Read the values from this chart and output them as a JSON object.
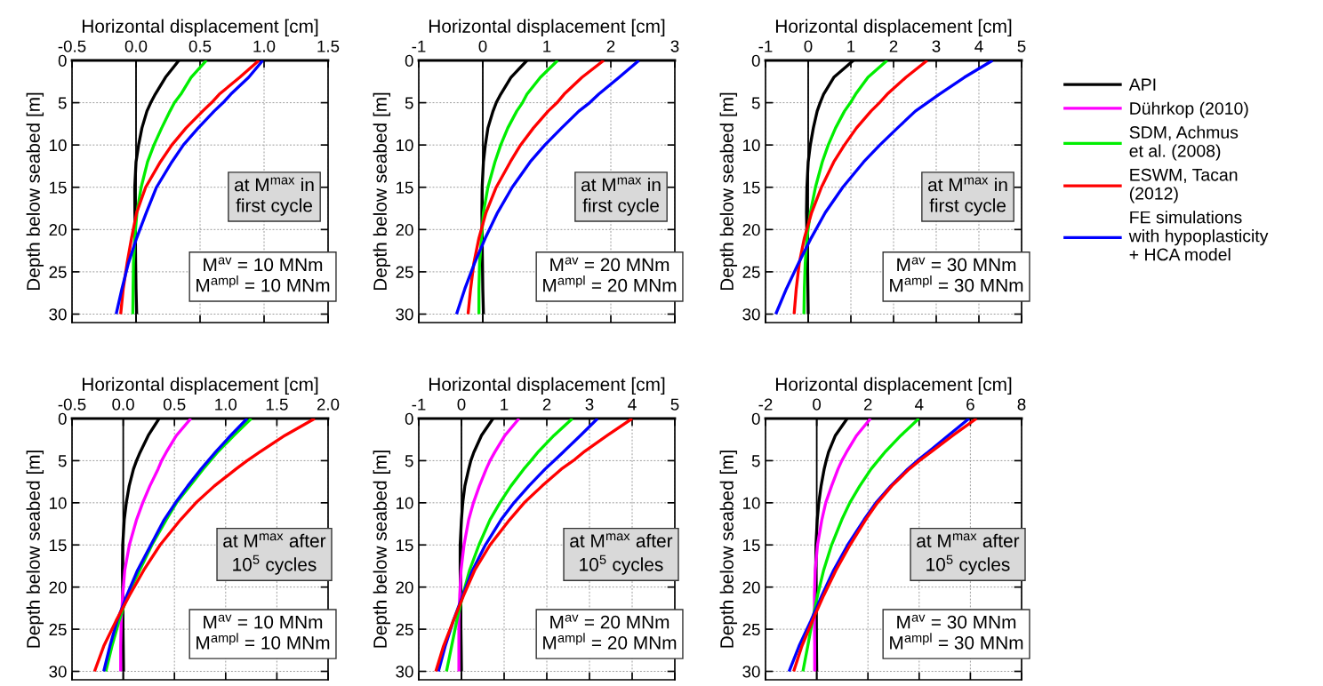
{
  "chart_data": [
    {
      "type": "line",
      "xlabel": "Horizontal displacement [cm]",
      "ylabel": "Depth below seabed [m]",
      "xlim": [
        -0.5,
        1.5
      ],
      "xticks": [
        -0.5,
        {
          "value": 0,
          "label": "0.0"
        },
        0.5,
        {
          "value": 1,
          "label": "1.0"
        },
        1.5
      ],
      "ylim": [
        31,
        0
      ],
      "yticks": [
        0,
        5,
        10,
        15,
        20,
        25,
        30
      ],
      "grid": true,
      "legend": "right",
      "ref_lines": [
        {
          "axis": "x",
          "value": 0,
          "color": "#000000"
        }
      ],
      "annotations": [
        "at M$^{max}$ in\nfirst cycle",
        "M$^{av}$ = 10 MNm\nM$^{ampl}$ = 10 MNm"
      ],
      "series": [
        {
          "name": "API",
          "color": "#000000",
          "x": [
            0.335,
            0.23,
            0.15,
            0.115,
            0.085,
            0.046,
            0.02,
            0.0,
            -0.01,
            -0.009,
            -0.005,
            -0.003,
            0.0,
            0.005
          ],
          "values": [
            0,
            2,
            4,
            5,
            6,
            8,
            10,
            12,
            15,
            18,
            21,
            24,
            27,
            30
          ]
        },
        {
          "name": "SDM, Achmus\net al. (2008)",
          "color": "#00ee00",
          "x": [
            0.55,
            0.43,
            0.35,
            0.3,
            0.265,
            0.2,
            0.14,
            0.09,
            0.04,
            0.007,
            -0.01,
            -0.02,
            -0.023,
            -0.025
          ],
          "values": [
            0,
            2,
            4,
            5,
            6,
            8,
            10,
            12,
            15,
            18,
            21,
            24,
            27,
            30
          ]
        },
        {
          "name": "ESWM, Tacan\n(2012)",
          "color": "#ff0000",
          "x": [
            0.96,
            0.81,
            0.65,
            0.59,
            0.52,
            0.39,
            0.28,
            0.19,
            0.075,
            0.005,
            -0.035,
            -0.07,
            -0.1,
            -0.12
          ],
          "values": [
            0,
            2,
            4,
            5,
            6,
            8,
            10,
            12,
            15,
            18,
            21,
            24,
            27,
            30
          ]
        },
        {
          "name": "FE simulations\nwith hypoplasticity\n+ HCA model",
          "color": "#0000ff",
          "x": [
            0.99,
            0.88,
            0.74,
            0.68,
            0.61,
            0.485,
            0.37,
            0.28,
            0.16,
            0.08,
            0.005,
            -0.06,
            -0.11,
            -0.155
          ],
          "values": [
            0,
            2,
            4,
            5,
            6,
            8,
            10,
            12,
            15,
            18,
            21,
            24,
            27,
            30
          ]
        }
      ]
    },
    {
      "type": "line",
      "xlabel": "Horizontal displacement [cm]",
      "ylabel": "Depth below seabed [m]",
      "xlim": [
        -1,
        3
      ],
      "xticks": [
        -1,
        0,
        1,
        2,
        3
      ],
      "ylim": [
        31,
        0
      ],
      "yticks": [
        0,
        5,
        10,
        15,
        20,
        25,
        30
      ],
      "grid": true,
      "ref_lines": [
        {
          "axis": "x",
          "value": 0,
          "color": "#000000"
        }
      ],
      "annotations": [
        "at M$^{max}$ in\nfirst cycle",
        "M$^{av}$ = 20 MNm\nM$^{ampl}$ = 20 MNm"
      ],
      "series": [
        {
          "name": "API",
          "color": "#000000",
          "x": [
            0.69,
            0.44,
            0.28,
            0.21,
            0.16,
            0.08,
            0.04,
            0.01,
            -0.01,
            -0.014,
            -0.01,
            -0.005,
            0.0,
            0.01
          ],
          "values": [
            0,
            2,
            4,
            5,
            6,
            8,
            10,
            12,
            15,
            18,
            21,
            24,
            27,
            30
          ]
        },
        {
          "name": "SDM, Achmus\net al. (2008)",
          "color": "#00ee00",
          "x": [
            1.17,
            0.9,
            0.69,
            0.62,
            0.53,
            0.39,
            0.28,
            0.19,
            0.08,
            0.01,
            -0.02,
            -0.05,
            -0.06,
            -0.06
          ],
          "values": [
            0,
            2,
            4,
            5,
            6,
            8,
            10,
            12,
            15,
            18,
            21,
            24,
            27,
            30
          ]
        },
        {
          "name": "ESWM, Tacan\n(2012)",
          "color": "#ff0000",
          "x": [
            1.89,
            1.55,
            1.27,
            1.16,
            1.02,
            0.79,
            0.59,
            0.43,
            0.21,
            0.05,
            -0.06,
            -0.14,
            -0.19,
            -0.23
          ],
          "values": [
            0,
            2,
            4,
            5,
            6,
            8,
            10,
            12,
            15,
            18,
            21,
            24,
            27,
            30
          ]
        },
        {
          "name": "FE simulations\nwith hypoplasticity\n+ HCA model",
          "color": "#0000ff",
          "x": [
            2.44,
            2.13,
            1.81,
            1.67,
            1.5,
            1.23,
            0.97,
            0.74,
            0.46,
            0.23,
            0.04,
            -0.13,
            -0.28,
            -0.41
          ],
          "values": [
            0,
            2,
            4,
            5,
            6,
            8,
            10,
            12,
            15,
            18,
            21,
            24,
            27,
            30
          ]
        }
      ]
    },
    {
      "type": "line",
      "xlabel": "Horizontal displacement [cm]",
      "ylabel": "Depth below seabed [m]",
      "xlim": [
        -1,
        5
      ],
      "xticks": [
        -1,
        0,
        1,
        2,
        3,
        4,
        5
      ],
      "ylim": [
        31,
        0
      ],
      "yticks": [
        0,
        5,
        10,
        15,
        20,
        25,
        30
      ],
      "grid": true,
      "ref_lines": [
        {
          "axis": "x",
          "value": 0,
          "color": "#000000"
        }
      ],
      "annotations": [
        "at M$^{max}$ in\nfirst cycle",
        "M$^{av}$ = 30 MNm\nM$^{ampl}$ = 30 MNm"
      ],
      "series": [
        {
          "name": "API",
          "color": "#000000",
          "x": [
            1.06,
            0.6,
            0.36,
            0.28,
            0.21,
            0.12,
            0.05,
            0.0,
            -0.03,
            -0.04,
            -0.03,
            -0.015,
            -0.007,
            0.0
          ],
          "values": [
            0,
            2,
            4,
            5,
            6,
            8,
            10,
            12,
            15,
            18,
            21,
            24,
            27,
            30
          ]
        },
        {
          "name": "SDM, Achmus\net al. (2008)",
          "color": "#00ee00",
          "x": [
            1.85,
            1.4,
            1.11,
            0.99,
            0.85,
            0.64,
            0.47,
            0.33,
            0.17,
            0.05,
            -0.03,
            -0.07,
            -0.09,
            -0.1
          ],
          "values": [
            0,
            2,
            4,
            5,
            6,
            8,
            10,
            12,
            15,
            18,
            21,
            24,
            27,
            30
          ]
        },
        {
          "name": "ESWM, Tacan\n(2012)",
          "color": "#ff0000",
          "x": [
            2.79,
            2.29,
            1.85,
            1.67,
            1.47,
            1.13,
            0.85,
            0.6,
            0.31,
            0.08,
            -0.09,
            -0.21,
            -0.28,
            -0.33
          ],
          "values": [
            0,
            2,
            4,
            5,
            6,
            8,
            10,
            12,
            15,
            18,
            21,
            24,
            27,
            30
          ]
        },
        {
          "name": "FE simulations\nwith hypoplasticity\n+ HCA model",
          "color": "#0000ff",
          "x": [
            4.32,
            3.66,
            3.07,
            2.79,
            2.51,
            2.09,
            1.68,
            1.3,
            0.81,
            0.4,
            0.07,
            -0.23,
            -0.51,
            -0.76
          ],
          "values": [
            0,
            2,
            4,
            5,
            6,
            8,
            10,
            12,
            15,
            18,
            21,
            24,
            27,
            30
          ]
        }
      ]
    },
    {
      "type": "line",
      "xlabel": "Horizontal displacement [cm]",
      "ylabel": "Depth below seabed [m]",
      "xlim": [
        -0.5,
        2.0
      ],
      "xticks": [
        -0.5,
        {
          "value": 0,
          "label": "0.0"
        },
        0.5,
        {
          "value": 1,
          "label": "1.0"
        },
        1.5,
        {
          "value": 2,
          "label": "2.0"
        }
      ],
      "ylim": [
        31,
        0
      ],
      "yticks": [
        0,
        5,
        10,
        15,
        20,
        25,
        30
      ],
      "grid": true,
      "ref_lines": [
        {
          "axis": "x",
          "value": 0,
          "color": "#000000"
        }
      ],
      "annotations": [
        "at M$^{max}$ after\n10$^{5}$ cycles",
        "M$^{av}$ = 10 MNm\nM$^{ampl}$ = 10 MNm"
      ],
      "series": [
        {
          "name": "API",
          "color": "#000000",
          "x": [
            0.35,
            0.245,
            0.165,
            0.13,
            0.1,
            0.058,
            0.03,
            0.01,
            -0.005,
            -0.008,
            -0.005,
            -0.003,
            0.0,
            0.003
          ],
          "values": [
            0,
            2,
            4,
            5,
            6,
            8,
            10,
            12,
            15,
            18,
            21,
            24,
            27,
            30
          ]
        },
        {
          "name": "Dührkop (2010)",
          "color": "#ff00ff",
          "x": [
            0.66,
            0.52,
            0.42,
            0.375,
            0.34,
            0.26,
            0.19,
            0.13,
            0.06,
            0.015,
            -0.005,
            -0.02,
            -0.025,
            -0.025
          ],
          "values": [
            0,
            2,
            4,
            5,
            6,
            8,
            10,
            12,
            15,
            18,
            21,
            24,
            27,
            30
          ]
        },
        {
          "name": "SDM, Achmus\net al. (2008)",
          "color": "#00ee00",
          "x": [
            1.25,
            1.08,
            0.92,
            0.85,
            0.78,
            0.65,
            0.52,
            0.42,
            0.28,
            0.16,
            0.04,
            -0.04,
            -0.11,
            -0.17
          ],
          "values": [
            0,
            2,
            4,
            5,
            6,
            8,
            10,
            12,
            15,
            18,
            21,
            24,
            27,
            30
          ]
        },
        {
          "name": "FE simulations\nwith hypoplasticity\n+ HCA model",
          "color": "#0000ff",
          "x": [
            1.21,
            1.05,
            0.9,
            0.83,
            0.76,
            0.63,
            0.51,
            0.4,
            0.27,
            0.14,
            0.035,
            -0.06,
            -0.13,
            -0.19
          ],
          "values": [
            0,
            2,
            4,
            5,
            6,
            8,
            10,
            12,
            15,
            18,
            21,
            24,
            27,
            30
          ]
        },
        {
          "name": "ESWM, Tacan\n(2012)",
          "color": "#ff0000",
          "x": [
            1.87,
            1.58,
            1.33,
            1.21,
            1.1,
            0.89,
            0.71,
            0.56,
            0.36,
            0.2,
            0.06,
            -0.07,
            -0.19,
            -0.28
          ],
          "values": [
            0,
            2,
            4,
            5,
            6,
            8,
            10,
            12,
            15,
            18,
            21,
            24,
            27,
            30
          ]
        }
      ]
    },
    {
      "type": "line",
      "xlabel": "Horizontal displacement [cm]",
      "ylabel": "Depth below seabed [m]",
      "xlim": [
        -1,
        5
      ],
      "xticks": [
        -1,
        0,
        1,
        2,
        3,
        4,
        5
      ],
      "ylim": [
        31,
        0
      ],
      "yticks": [
        0,
        5,
        10,
        15,
        20,
        25,
        30
      ],
      "grid": true,
      "ref_lines": [
        {
          "axis": "x",
          "value": 0,
          "color": "#000000"
        }
      ],
      "annotations": [
        "at M$^{max}$ after\n10$^{5}$ cycles",
        "M$^{av}$ = 20 MNm\nM$^{ampl}$ = 20 MNm"
      ],
      "series": [
        {
          "name": "API",
          "color": "#000000",
          "x": [
            0.74,
            0.47,
            0.29,
            0.22,
            0.17,
            0.08,
            0.03,
            0.0,
            -0.03,
            -0.03,
            -0.02,
            -0.015,
            -0.007,
            0.0
          ],
          "values": [
            0,
            2,
            4,
            5,
            6,
            8,
            10,
            12,
            15,
            18,
            21,
            24,
            27,
            30
          ]
        },
        {
          "name": "Dührkop (2010)",
          "color": "#ff00ff",
          "x": [
            1.35,
            1.02,
            0.78,
            0.67,
            0.58,
            0.42,
            0.28,
            0.17,
            0.06,
            -0.01,
            -0.04,
            -0.06,
            -0.06,
            -0.06
          ],
          "values": [
            0,
            2,
            4,
            5,
            6,
            8,
            10,
            12,
            15,
            18,
            21,
            24,
            27,
            30
          ]
        },
        {
          "name": "SDM, Achmus\net al. (2008)",
          "color": "#00ee00",
          "x": [
            2.6,
            2.17,
            1.79,
            1.63,
            1.46,
            1.16,
            0.9,
            0.67,
            0.41,
            0.19,
            0.03,
            -0.11,
            -0.23,
            -0.35
          ],
          "values": [
            0,
            2,
            4,
            5,
            6,
            8,
            10,
            12,
            15,
            18,
            21,
            24,
            27,
            30
          ]
        },
        {
          "name": "FE simulations\nwith hypoplasticity\n+ HCA model",
          "color": "#0000ff",
          "x": [
            3.19,
            2.79,
            2.38,
            2.17,
            1.96,
            1.58,
            1.23,
            0.93,
            0.56,
            0.26,
            0.03,
            -0.19,
            -0.38,
            -0.54
          ],
          "values": [
            0,
            2,
            4,
            5,
            6,
            8,
            10,
            12,
            15,
            18,
            21,
            24,
            27,
            30
          ]
        },
        {
          "name": "ESWM, Tacan\n(2012)",
          "color": "#ff0000",
          "x": [
            4.0,
            3.42,
            2.86,
            2.62,
            2.34,
            1.89,
            1.47,
            1.13,
            0.67,
            0.31,
            0.05,
            -0.19,
            -0.42,
            -0.6
          ],
          "values": [
            0,
            2,
            4,
            5,
            6,
            8,
            10,
            12,
            15,
            18,
            21,
            24,
            27,
            30
          ]
        }
      ]
    },
    {
      "type": "line",
      "xlabel": "Horizontal displacement [cm]",
      "ylabel": "Depth below seabed [m]",
      "xlim": [
        -2,
        8
      ],
      "xticks": [
        -2,
        0,
        2,
        4,
        6,
        8
      ],
      "ylim": [
        31,
        0
      ],
      "yticks": [
        0,
        5,
        10,
        15,
        20,
        25,
        30
      ],
      "grid": true,
      "ref_lines": [
        {
          "axis": "x",
          "value": 0,
          "color": "#000000"
        }
      ],
      "annotations": [
        "at M$^{max}$ after\n10$^{5}$ cycles",
        "M$^{av}$ = 30 MNm\nM$^{ampl}$ = 30 MNm"
      ],
      "series": [
        {
          "name": "API",
          "color": "#000000",
          "x": [
            1.19,
            0.73,
            0.46,
            0.37,
            0.29,
            0.17,
            0.08,
            0.02,
            -0.03,
            -0.04,
            -0.03,
            -0.02,
            -0.01,
            0.0
          ],
          "values": [
            0,
            2,
            4,
            5,
            6,
            8,
            10,
            12,
            15,
            18,
            21,
            24,
            27,
            30
          ]
        },
        {
          "name": "Dührkop (2010)",
          "color": "#ff00ff",
          "x": [
            2.1,
            1.56,
            1.16,
            0.98,
            0.83,
            0.58,
            0.35,
            0.2,
            0.03,
            -0.06,
            -0.09,
            -0.09,
            -0.08,
            -0.08
          ],
          "values": [
            0,
            2,
            4,
            5,
            6,
            8,
            10,
            12,
            15,
            18,
            21,
            24,
            27,
            30
          ]
        },
        {
          "name": "SDM, Achmus\net al. (2008)",
          "color": "#00ee00",
          "x": [
            3.99,
            3.29,
            2.66,
            2.39,
            2.12,
            1.68,
            1.29,
            0.98,
            0.58,
            0.27,
            0.03,
            -0.17,
            -0.35,
            -0.54
          ],
          "values": [
            0,
            2,
            4,
            5,
            6,
            8,
            10,
            12,
            15,
            18,
            21,
            24,
            27,
            30
          ]
        },
        {
          "name": "FE simulations\nwith hypoplasticity\n+ HCA model",
          "color": "#0000ff",
          "x": [
            5.95,
            5.14,
            4.34,
            3.93,
            3.55,
            2.89,
            2.31,
            1.85,
            1.21,
            0.66,
            0.2,
            -0.23,
            -0.69,
            -1.08
          ],
          "values": [
            0,
            2,
            4,
            5,
            6,
            8,
            10,
            12,
            15,
            18,
            21,
            24,
            27,
            30
          ]
        },
        {
          "name": "ESWM, Tacan\n(2012)",
          "color": "#ff0000",
          "x": [
            6.24,
            5.32,
            4.45,
            4.01,
            3.61,
            2.93,
            2.37,
            1.91,
            1.3,
            0.75,
            0.27,
            -0.17,
            -0.58,
            -0.9
          ],
          "values": [
            0,
            2,
            4,
            5,
            6,
            8,
            10,
            12,
            15,
            18,
            21,
            24,
            27,
            30
          ]
        }
      ]
    }
  ]
}
